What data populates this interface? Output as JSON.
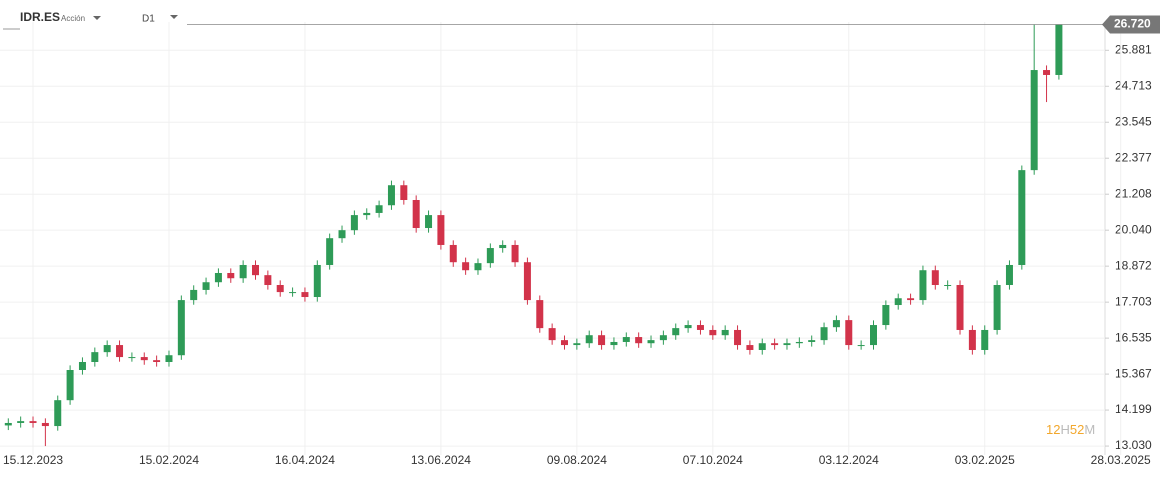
{
  "header": {
    "symbol": "IDR.ES",
    "kind": "Acción",
    "timeframe": "D1"
  },
  "chart_data": {
    "type": "candlestick",
    "categories": [
      null,
      null,
      "15.12.2023",
      null,
      null,
      null,
      null,
      null,
      null,
      null,
      null,
      null,
      null,
      "15.02.2024",
      null,
      null,
      null,
      null,
      null,
      null,
      null,
      null,
      null,
      null,
      "16.04.2024",
      null,
      null,
      null,
      null,
      null,
      null,
      null,
      null,
      null,
      null,
      "13.06.2024",
      null,
      null,
      null,
      null,
      null,
      null,
      null,
      null,
      null,
      null,
      "09.08.2024",
      null,
      null,
      null,
      null,
      null,
      null,
      null,
      null,
      null,
      null,
      "07.10.2024",
      null,
      null,
      null,
      null,
      null,
      null,
      null,
      null,
      null,
      null,
      "03.12.2024",
      null,
      null,
      null,
      null,
      null,
      null,
      null,
      null,
      null,
      null,
      "03.02.2025",
      null,
      null,
      null,
      null,
      null,
      null,
      null,
      null,
      null,
      null,
      "28.03.2025"
    ],
    "open": [
      13.7,
      13.78,
      13.84,
      13.78,
      13.68,
      14.52,
      15.5,
      15.76,
      16.08,
      16.31,
      15.92,
      15.92,
      15.82,
      15.76,
      15.98,
      17.77,
      18.1,
      18.35,
      18.65,
      18.48,
      18.91,
      18.58,
      18.26,
      18.03,
      18.03,
      17.87,
      18.91,
      19.78,
      20.04,
      20.53,
      20.6,
      20.85,
      21.5,
      21.02,
      20.11,
      20.53,
      19.56,
      19.0,
      18.74,
      18.97,
      19.46,
      19.56,
      19.0,
      17.77,
      16.86,
      16.47,
      16.31,
      16.37,
      16.63,
      16.31,
      16.41,
      16.57,
      16.37,
      16.47,
      16.63,
      16.86,
      16.96,
      16.8,
      16.63,
      16.8,
      16.31,
      16.15,
      16.37,
      16.31,
      16.37,
      16.41,
      16.47,
      16.89,
      17.12,
      16.31,
      16.31,
      16.96,
      17.61,
      17.83,
      17.77,
      18.74,
      18.26,
      18.26,
      16.8,
      16.15,
      16.8,
      18.26,
      18.91,
      21.99,
      25.24,
      25.08,
      null,
      null,
      null,
      null,
      null
    ],
    "high": [
      13.93,
      13.99,
      13.99,
      13.93,
      14.67,
      15.65,
      15.91,
      16.23,
      16.46,
      16.46,
      16.07,
      16.07,
      15.97,
      16.13,
      17.92,
      18.25,
      18.5,
      18.8,
      18.8,
      19.06,
      19.06,
      18.73,
      18.41,
      18.18,
      18.18,
      19.06,
      19.93,
      20.19,
      20.68,
      20.75,
      21.0,
      21.65,
      21.65,
      21.17,
      20.68,
      20.68,
      19.71,
      19.15,
      19.12,
      19.61,
      19.71,
      19.71,
      19.15,
      17.92,
      17.01,
      16.62,
      16.52,
      16.78,
      16.78,
      16.56,
      16.72,
      16.72,
      16.62,
      16.78,
      17.01,
      17.11,
      17.11,
      16.95,
      16.95,
      16.95,
      16.46,
      16.52,
      16.52,
      16.52,
      16.56,
      16.62,
      17.04,
      17.27,
      17.27,
      16.46,
      17.11,
      17.76,
      17.98,
      17.98,
      18.89,
      18.89,
      18.41,
      18.41,
      16.95,
      16.95,
      18.41,
      19.06,
      22.14,
      26.72,
      25.39,
      26.72,
      null,
      null,
      null,
      null,
      null
    ],
    "low": [
      13.55,
      13.63,
      13.63,
      13.03,
      13.53,
      14.37,
      15.35,
      15.61,
      15.93,
      15.77,
      15.77,
      15.67,
      15.61,
      15.61,
      15.83,
      17.62,
      17.95,
      18.2,
      18.33,
      18.33,
      18.43,
      18.11,
      17.88,
      17.88,
      17.72,
      17.72,
      18.76,
      19.63,
      19.89,
      20.38,
      20.45,
      20.7,
      20.87,
      19.96,
      19.96,
      19.41,
      18.85,
      18.59,
      18.59,
      18.82,
      19.31,
      18.85,
      17.62,
      16.71,
      16.32,
      16.16,
      16.16,
      16.22,
      16.16,
      16.16,
      16.26,
      16.22,
      16.22,
      16.32,
      16.48,
      16.71,
      16.65,
      16.48,
      16.48,
      16.16,
      16.0,
      16.0,
      16.16,
      16.16,
      16.22,
      16.26,
      16.32,
      16.74,
      16.16,
      16.16,
      16.16,
      16.81,
      17.46,
      17.62,
      17.62,
      18.11,
      18.11,
      16.65,
      16.0,
      16.0,
      16.65,
      18.11,
      18.76,
      21.84,
      24.2,
      24.93,
      null,
      null,
      null,
      null,
      null
    ],
    "close": [
      13.78,
      13.84,
      13.78,
      13.68,
      14.52,
      15.5,
      15.76,
      16.08,
      16.31,
      15.92,
      15.92,
      15.82,
      15.76,
      15.98,
      17.77,
      18.1,
      18.35,
      18.65,
      18.48,
      18.91,
      18.58,
      18.26,
      18.03,
      18.03,
      17.87,
      18.91,
      19.78,
      20.04,
      20.53,
      20.6,
      20.85,
      21.5,
      21.02,
      20.11,
      20.53,
      19.56,
      19.0,
      18.74,
      18.97,
      19.46,
      19.56,
      19.0,
      17.77,
      16.86,
      16.47,
      16.31,
      16.37,
      16.63,
      16.31,
      16.41,
      16.57,
      16.37,
      16.47,
      16.63,
      16.86,
      16.96,
      16.8,
      16.63,
      16.8,
      16.31,
      16.15,
      16.37,
      16.31,
      16.37,
      16.41,
      16.47,
      16.89,
      17.12,
      16.31,
      16.31,
      16.96,
      17.61,
      17.83,
      17.77,
      18.74,
      18.26,
      18.26,
      16.8,
      16.15,
      16.8,
      18.26,
      18.91,
      21.99,
      25.24,
      25.08,
      26.72,
      null,
      null,
      null,
      null,
      null
    ],
    "up_color": "#2e9b57",
    "down_color": "#d2334a",
    "ylim": [
      12.74,
      26.8
    ],
    "yticks": [
      {
        "value": 13.03,
        "label": "13.030"
      },
      14.199,
      15.367,
      16.535,
      17.703,
      18.872,
      {
        "value": 20.04,
        "label": "20.040"
      },
      21.208,
      22.377,
      23.545,
      24.713,
      25.881
    ],
    "last_price": {
      "value": 26.72,
      "label": "26.720"
    },
    "grid": true
  },
  "timer": {
    "hours": "12",
    "h": "H",
    "minutes": "52",
    "m": "M"
  }
}
